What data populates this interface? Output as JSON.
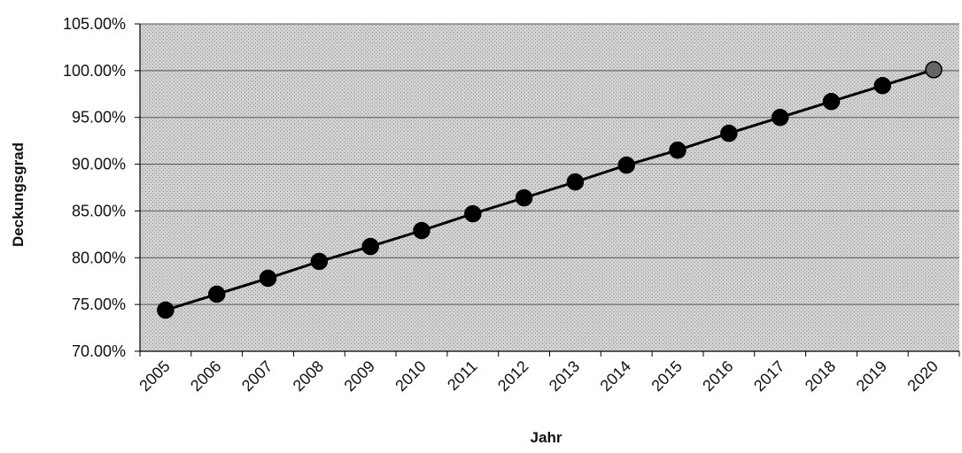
{
  "chart_data": {
    "type": "line",
    "title": "",
    "xlabel": "Jahr",
    "ylabel": "Deckungsgrad",
    "categories": [
      "2005",
      "2006",
      "2007",
      "2008",
      "2009",
      "2010",
      "2011",
      "2012",
      "2013",
      "2014",
      "2015",
      "2016",
      "2017",
      "2018",
      "2019",
      "2020"
    ],
    "series": [
      {
        "values": [
          74.4,
          76.1,
          77.8,
          79.6,
          81.2,
          82.9,
          84.7,
          86.4,
          88.1,
          89.9,
          91.5,
          93.3,
          95.0,
          96.7,
          98.4,
          100.1
        ]
      }
    ],
    "ylim": [
      70,
      105
    ],
    "yticks": [
      "70.00%",
      "75.00%",
      "80.00%",
      "85.00%",
      "90.00%",
      "95.00%",
      "100.00%",
      "105.00%"
    ],
    "grid": true,
    "legend": "none",
    "colors": {
      "plot_background": "#c9c9c9",
      "line": "#000000",
      "marker": "#000000",
      "marker_last": "#666666",
      "gridline": "#555555"
    }
  }
}
